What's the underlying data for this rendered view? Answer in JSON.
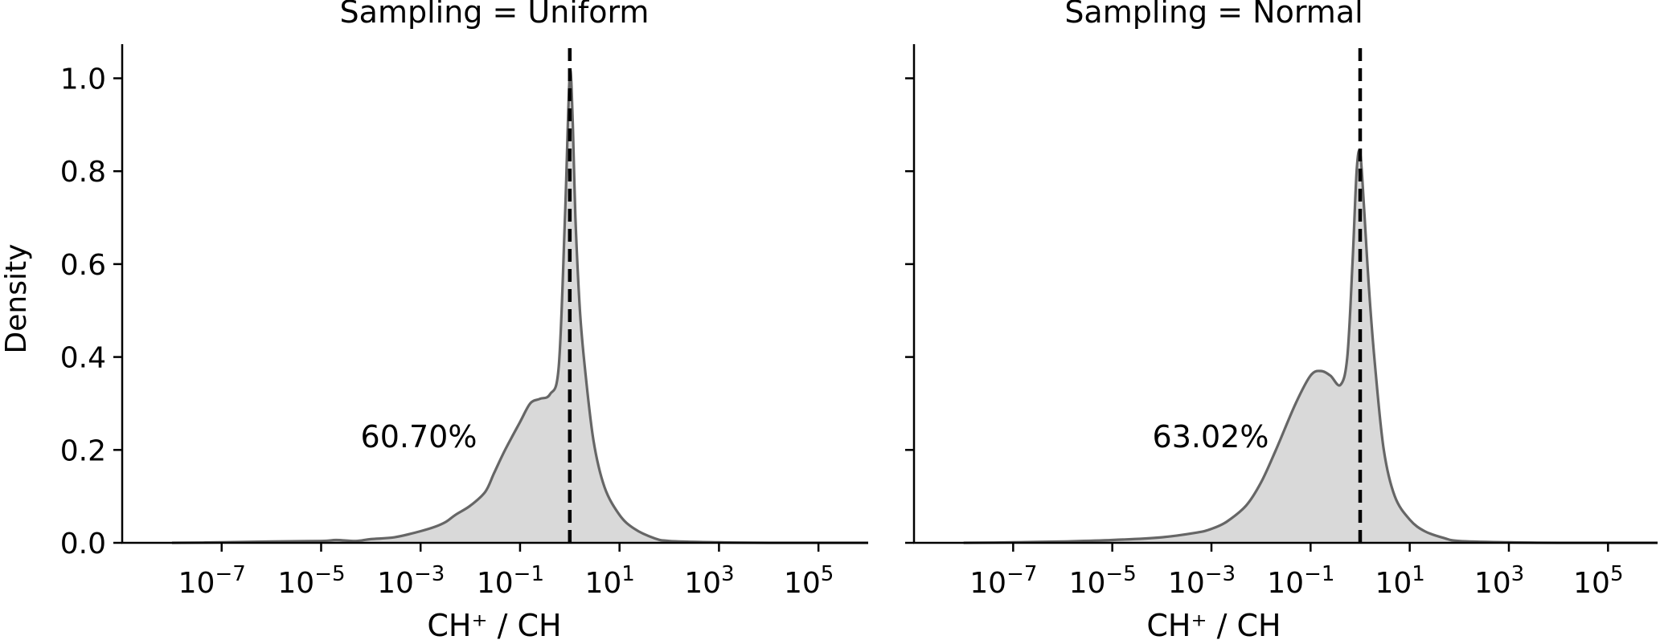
{
  "chart_data": [
    {
      "type": "area",
      "title": "Sampling = Uniform",
      "xlabel": "CH⁺ / CH",
      "ylabel": "Density",
      "xscale": "log",
      "xlim": [
        1e-09,
        1000000.0
      ],
      "ylim": [
        0,
        1.07
      ],
      "xticks": [
        1e-07,
        1e-05,
        0.001,
        0.1,
        10.0,
        1000.0,
        100000.0
      ],
      "yticks": [
        0.0,
        0.2,
        0.4,
        0.6,
        0.8,
        1.0
      ],
      "vline_x": 1,
      "annotation": "60.70%",
      "fill_color": "#d9d9d9",
      "line_color": "#666666",
      "series": [
        {
          "x": [
            1e-08,
            1e-07,
            1e-06,
            1e-05,
            2e-05,
            5e-05,
            0.0001,
            0.0003,
            0.001,
            0.002,
            0.0032,
            0.005,
            0.01,
            0.02,
            0.03,
            0.05,
            0.1,
            0.16,
            0.25,
            0.4,
            0.6,
            0.8,
            1,
            1.15,
            1.3,
            1.6,
            2,
            3,
            5,
            10.0,
            20.0,
            50.0,
            100.0,
            1000.0,
            10000.0,
            100000.0,
            1000000.0
          ],
          "y": [
            0.0,
            0.001,
            0.003,
            0.004,
            0.006,
            0.004,
            0.008,
            0.012,
            0.025,
            0.035,
            0.045,
            0.06,
            0.08,
            0.11,
            0.15,
            0.2,
            0.26,
            0.3,
            0.31,
            0.32,
            0.38,
            0.7,
            1.01,
            0.9,
            0.7,
            0.5,
            0.38,
            0.22,
            0.12,
            0.06,
            0.03,
            0.01,
            0.004,
            0.001,
            0.0,
            0.0,
            0.0
          ]
        }
      ]
    },
    {
      "type": "area",
      "title": "Sampling = Normal",
      "xlabel": "CH⁺ / CH",
      "ylabel": "",
      "xscale": "log",
      "xlim": [
        1e-09,
        1000000.0
      ],
      "ylim": [
        0,
        1.07
      ],
      "xticks": [
        1e-07,
        1e-05,
        0.001,
        0.1,
        10.0,
        1000.0,
        100000.0
      ],
      "yticks": [
        0.0,
        0.2,
        0.4,
        0.6,
        0.8,
        1.0
      ],
      "vline_x": 1,
      "annotation": "63.02%",
      "fill_color": "#d9d9d9",
      "line_color": "#666666",
      "series": [
        {
          "x": [
            1e-08,
            1e-07,
            1e-06,
            1e-05,
            0.0001,
            0.0005,
            0.001,
            0.002,
            0.005,
            0.01,
            0.02,
            0.05,
            0.1,
            0.16,
            0.25,
            0.4,
            0.55,
            0.7,
            0.85,
            1,
            1.2,
            1.5,
            2,
            3,
            5,
            10.0,
            20.0,
            50.0,
            100.0,
            1000.0,
            10000.0,
            100000.0,
            1000000.0
          ],
          "y": [
            0.0,
            0.001,
            0.003,
            0.006,
            0.012,
            0.022,
            0.03,
            0.045,
            0.08,
            0.13,
            0.2,
            0.3,
            0.36,
            0.37,
            0.36,
            0.34,
            0.4,
            0.6,
            0.8,
            0.84,
            0.72,
            0.55,
            0.38,
            0.2,
            0.1,
            0.05,
            0.025,
            0.01,
            0.004,
            0.001,
            0.0,
            0.0,
            0.0
          ]
        }
      ]
    }
  ]
}
